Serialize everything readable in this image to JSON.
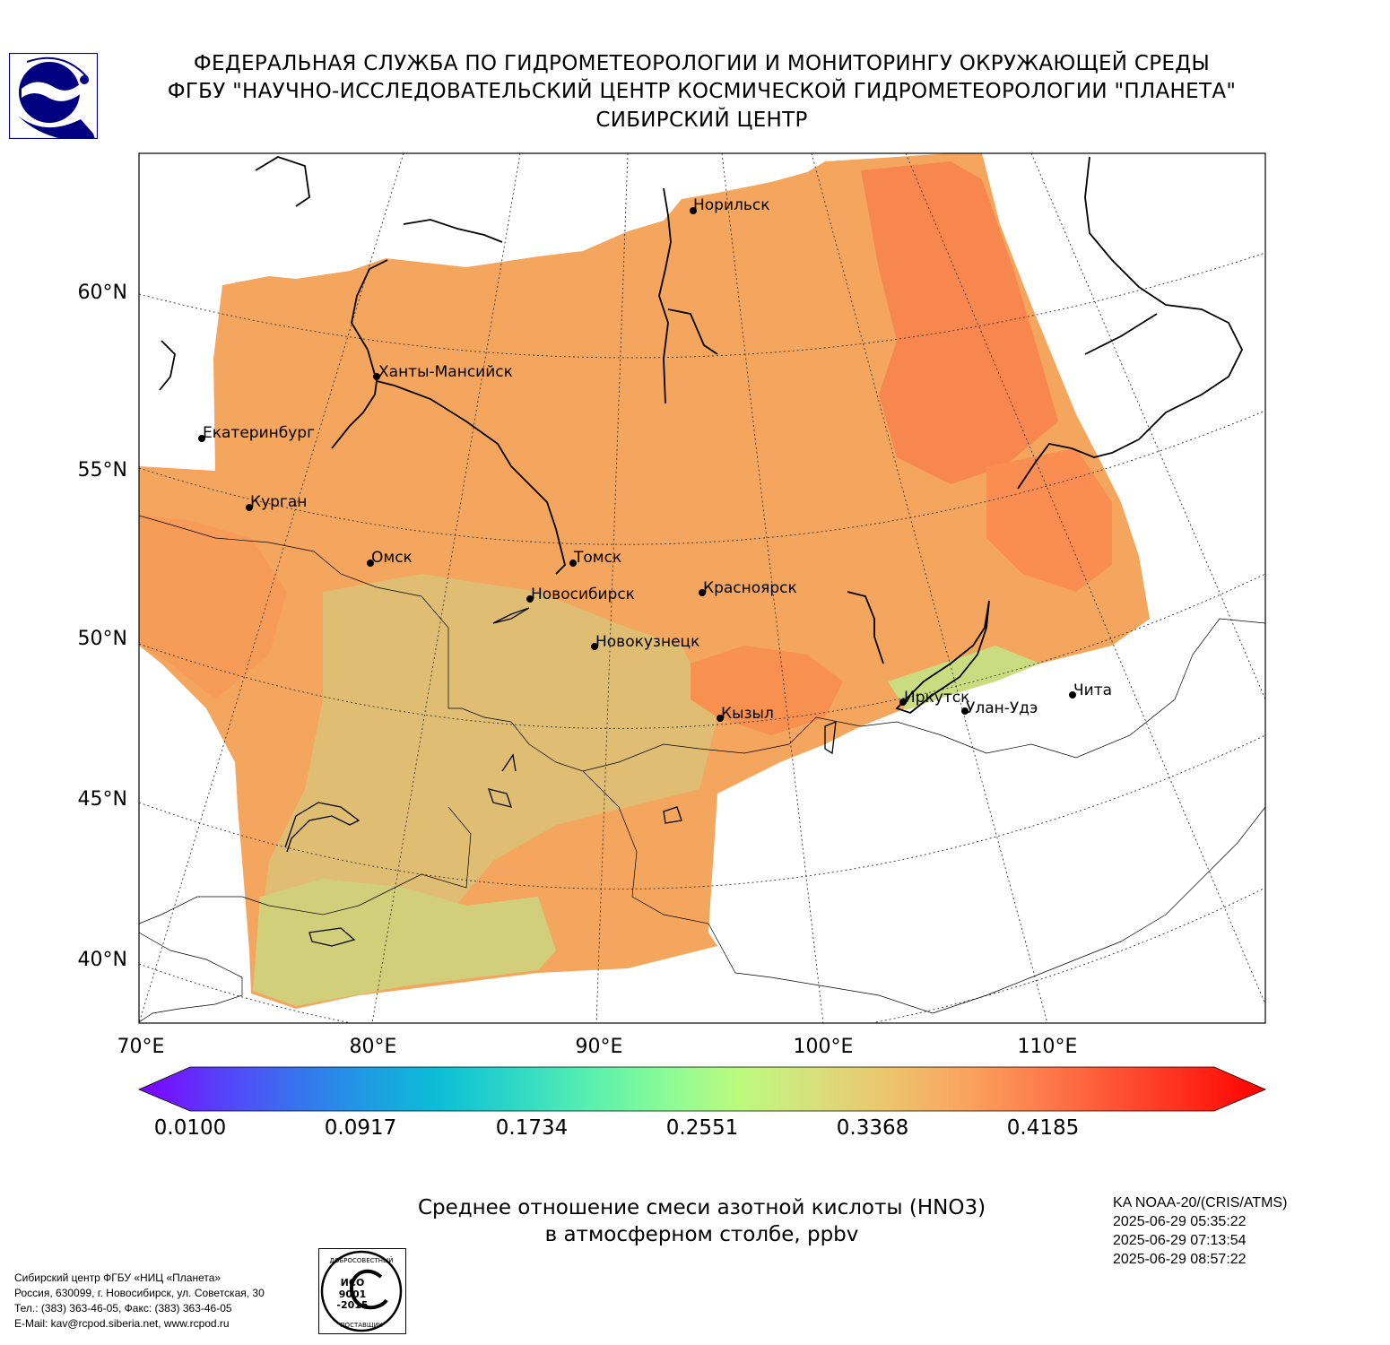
{
  "header": {
    "line1": "ФЕДЕРАЛЬНАЯ СЛУЖБА ПО ГИДРОМЕТЕОРОЛОГИИ И МОНИТОРИНГУ ОКРУЖАЮЩЕЙ СРЕДЫ",
    "line2": "ФГБУ \"НАУЧНО-ИССЛЕДОВАТЕЛЬСКИЙ ЦЕНТР КОСМИЧЕСКОЙ ГИДРОМЕТЕОРОЛОГИИ \"ПЛАНЕТА\"",
    "line3": "СИБИРСКИЙ ЦЕНТР"
  },
  "map": {
    "lat_labels": [
      "60°N",
      "55°N",
      "50°N",
      "45°N",
      "40°N"
    ],
    "lon_labels": [
      "70°E",
      "80°E",
      "90°E",
      "100°E",
      "110°E"
    ],
    "cities": [
      {
        "name": "Норильск"
      },
      {
        "name": "Ханты-Мансийск"
      },
      {
        "name": "Екатеринбург"
      },
      {
        "name": "Курган"
      },
      {
        "name": "Омск"
      },
      {
        "name": "Томск"
      },
      {
        "name": "Новосибирск"
      },
      {
        "name": "Красноярск"
      },
      {
        "name": "Новокузнецк"
      },
      {
        "name": "Иркутск"
      },
      {
        "name": "Улан-Удэ"
      },
      {
        "name": "Чита"
      },
      {
        "name": "Кызыл"
      }
    ]
  },
  "colorbar": {
    "ticks": [
      "0.0100",
      "0.0917",
      "0.1734",
      "0.2551",
      "0.3368",
      "0.4185"
    ],
    "colors": [
      "#7f00ff",
      "#5a3cf9",
      "#3a6ef0",
      "#1f9ae4",
      "#0bbfd6",
      "#2ed8c6",
      "#58f0b0",
      "#8afb96",
      "#bcfa7e",
      "#d8e07a",
      "#ecc46c",
      "#f9a45e",
      "#fd7d4c",
      "#fe5334",
      "#ff2a1a",
      "#ff0000"
    ]
  },
  "title": {
    "line1": "Среднее отношение смеси азотной кислоты (HNO3)",
    "line2": "в атмосферном столбе, ppbv"
  },
  "satellite": {
    "name": "KA NOAA-20/(CRIS/ATMS)",
    "times": [
      "2025-06-29 05:35:22",
      "2025-06-29 07:13:54",
      "2025-06-29 08:57:22"
    ]
  },
  "footer": {
    "lines": [
      "Сибирский центр ФГБУ «НИЦ «Планета»",
      "Россия, 630099, г. Новосибирск, ул. Советская, 30",
      "Тел.: (383) 363-46-05, Факс: (383) 363-46-05",
      "E-Mail: kav@rcpod.siberia.net, www.rcpod.ru"
    ]
  },
  "iso_seal": {
    "top_text": "ДОБРОСОВЕСТНЫЙ",
    "center_text": "ИСО 9001 -2015",
    "bottom_text": "ПОСТАВЩИК"
  }
}
